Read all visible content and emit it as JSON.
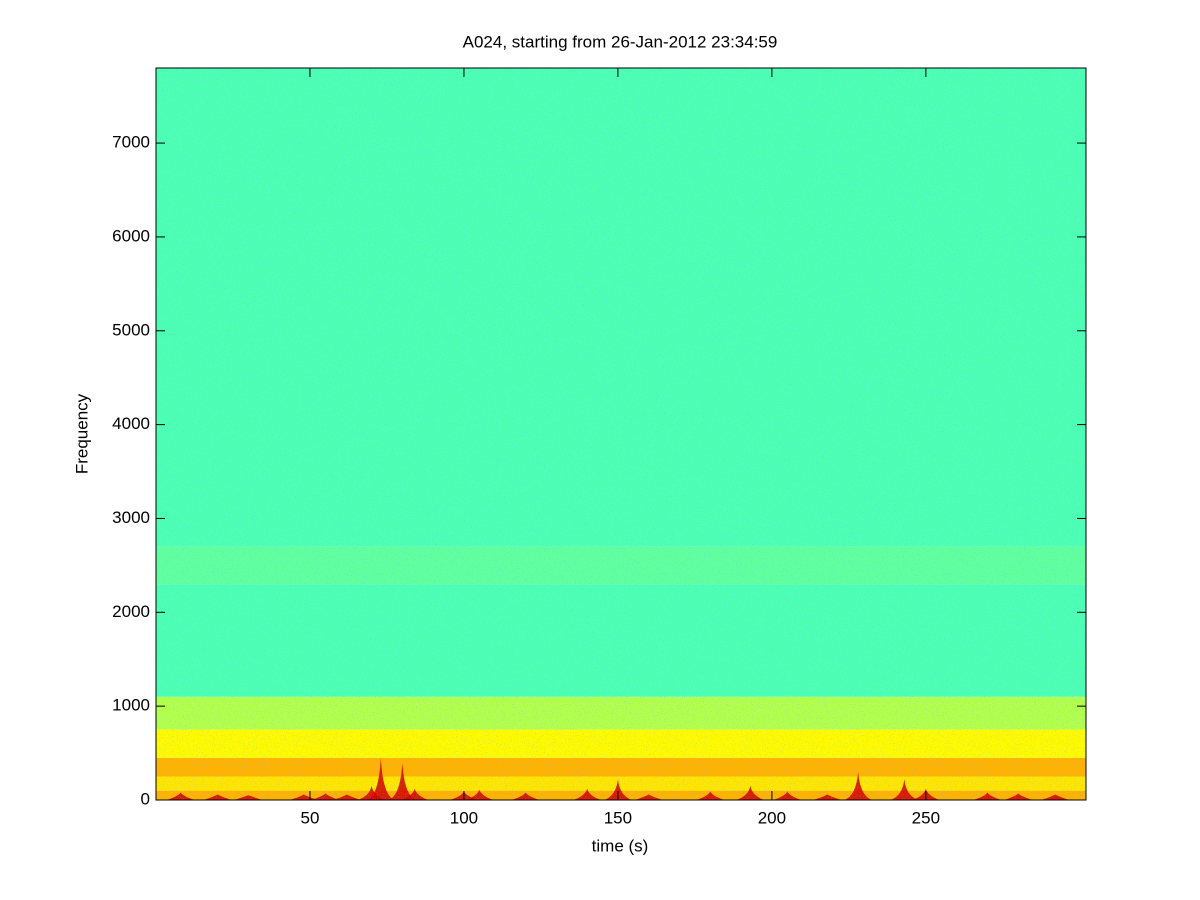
{
  "chart_data": {
    "type": "spectrogram",
    "title": "A024, starting from 26-Jan-2012 23:34:59",
    "xlabel": "time (s)",
    "ylabel": "Frequency",
    "xlim": [
      0,
      302
    ],
    "ylim": [
      0,
      7800
    ],
    "xticks": [
      50,
      100,
      150,
      200,
      250
    ],
    "yticks": [
      0,
      1000,
      2000,
      3000,
      4000,
      5000,
      6000,
      7000
    ],
    "colormap": "jet",
    "y_bins": [
      0,
      100,
      250,
      450,
      750,
      1100,
      2300,
      2700,
      7800
    ],
    "intensity": [
      0.7,
      0.65,
      0.7,
      0.63,
      0.55,
      0.45,
      0.47,
      0.45
    ],
    "burst_times": [
      8,
      20,
      30,
      48,
      55,
      62,
      70,
      73,
      80,
      84,
      100,
      105,
      120,
      140,
      150,
      160,
      180,
      193,
      205,
      218,
      228,
      243,
      250,
      270,
      280,
      292
    ],
    "burst_heights": [
      80,
      60,
      50,
      60,
      70,
      60,
      150,
      450,
      400,
      120,
      90,
      110,
      80,
      120,
      220,
      60,
      90,
      150,
      90,
      60,
      300,
      220,
      120,
      80,
      70,
      60
    ],
    "burst_color_level": 0.92
  }
}
